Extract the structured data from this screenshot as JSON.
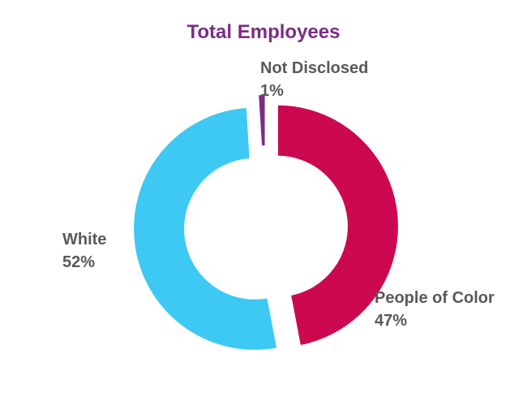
{
  "chart_data": {
    "type": "pie",
    "title": "Total Employees",
    "donut": true,
    "exploded": true,
    "slices": [
      {
        "name": "People of Color",
        "value": 47,
        "label": "47%",
        "color": "#cc0851"
      },
      {
        "name": "White",
        "value": 52,
        "label": "52%",
        "color": "#3ec8f4"
      },
      {
        "name": "Not Disclosed",
        "value": 1,
        "label": "1%",
        "color": "#7b2c86"
      }
    ]
  }
}
